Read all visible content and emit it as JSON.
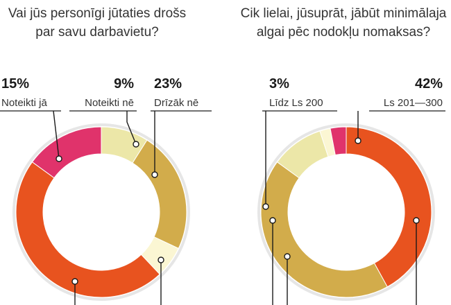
{
  "chart_data": [
    {
      "type": "pie",
      "title_lines": [
        "Vai jūs personīgi jūtaties drošs",
        "par savu darbavietu?"
      ],
      "slices": [
        {
          "label": "Noteikti nē",
          "pct_label": "9%",
          "value": 9,
          "color": "#ece7a8"
        },
        {
          "label": "Drīzāk nē",
          "pct_label": "23%",
          "value": 23,
          "color": "#d2ac4b"
        },
        {
          "label": "",
          "pct_label": "",
          "value": 6,
          "color": "#fbf6d3"
        },
        {
          "label": "",
          "pct_label": "",
          "value": 47,
          "color": "#e8531f"
        },
        {
          "label": "Noteikti jā",
          "pct_label": "15%",
          "value": 15,
          "color": "#e0336b"
        }
      ]
    },
    {
      "type": "pie",
      "title_lines": [
        "Cik lielai, jūsuprāt, jābūt minimālaja",
        "algai pēc nodokļu nomaksas?"
      ],
      "slices": [
        {
          "label": "Ls 201—300",
          "pct_label": "42%",
          "value": 42,
          "color": "#e8531f"
        },
        {
          "label": "",
          "pct_label": "",
          "value": 43,
          "color": "#d2ac4b"
        },
        {
          "label": "",
          "pct_label": "",
          "value": 10,
          "color": "#ece7a8"
        },
        {
          "label": "",
          "pct_label": "",
          "value": 2,
          "color": "#fbf6d3"
        },
        {
          "label": "Līdz Ls 200",
          "pct_label": "3%",
          "value": 3,
          "color": "#e0336b"
        }
      ]
    }
  ]
}
